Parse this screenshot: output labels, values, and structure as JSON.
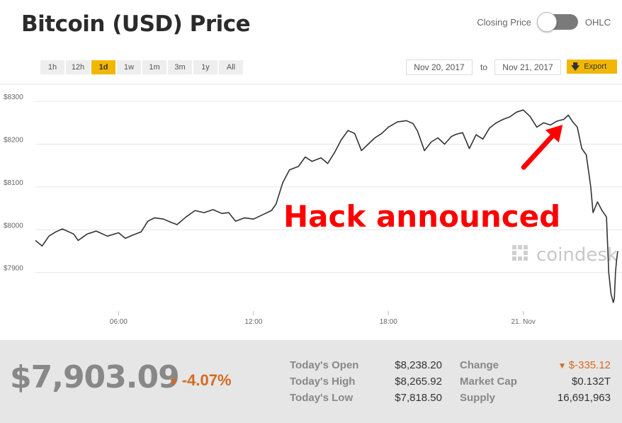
{
  "header": {
    "title": "Bitcoin (USD) Price",
    "toggle_left": "Closing Price",
    "toggle_right": "OHLC"
  },
  "ranges": [
    {
      "label": "1h",
      "active": false
    },
    {
      "label": "12h",
      "active": false
    },
    {
      "label": "1d",
      "active": true
    },
    {
      "label": "1w",
      "active": false
    },
    {
      "label": "1m",
      "active": false
    },
    {
      "label": "3m",
      "active": false
    },
    {
      "label": "1y",
      "active": false
    },
    {
      "label": "All",
      "active": false
    }
  ],
  "date_range": {
    "from": "Nov 20, 2017",
    "to_label": "to",
    "to": "Nov 21, 2017",
    "export_label": "Export",
    "export_icon": "download-arrow-icon"
  },
  "chart_data": {
    "type": "line",
    "title": "",
    "xlabel": "",
    "ylabel": "",
    "x_ticks": [
      {
        "label": "06:00",
        "hour": 6
      },
      {
        "label": "12:00",
        "hour": 12
      },
      {
        "label": "18:00",
        "hour": 18
      },
      {
        "label": "21. Nov",
        "hour": 24
      }
    ],
    "y_ticks": [
      {
        "label": "$8300",
        "value": 8300
      },
      {
        "label": "$8200",
        "value": 8200
      },
      {
        "label": "$8100",
        "value": 8100
      },
      {
        "label": "$8000",
        "value": 8000
      },
      {
        "label": "$7900",
        "value": 7900
      }
    ],
    "xlim": [
      2.3,
      28.2
    ],
    "ylim": [
      7810,
      8340
    ],
    "grid": true,
    "line_color": "#333333",
    "series": [
      {
        "points": [
          [
            2.3,
            7975
          ],
          [
            2.6,
            7962
          ],
          [
            2.9,
            7985
          ],
          [
            3.2,
            7995
          ],
          [
            3.5,
            8002
          ],
          [
            4.0,
            7990
          ],
          [
            4.2,
            7975
          ],
          [
            4.6,
            7990
          ],
          [
            5.0,
            7997
          ],
          [
            5.5,
            7985
          ],
          [
            6.0,
            7993
          ],
          [
            6.3,
            7980
          ],
          [
            6.6,
            7987
          ],
          [
            7.0,
            7995
          ],
          [
            7.3,
            8020
          ],
          [
            7.6,
            8028
          ],
          [
            8.0,
            8025
          ],
          [
            8.3,
            8018
          ],
          [
            8.6,
            8012
          ],
          [
            9.0,
            8030
          ],
          [
            9.4,
            8045
          ],
          [
            9.8,
            8040
          ],
          [
            10.2,
            8047
          ],
          [
            10.6,
            8038
          ],
          [
            10.9,
            8040
          ],
          [
            11.2,
            8020
          ],
          [
            11.6,
            8028
          ],
          [
            12.0,
            8025
          ],
          [
            12.4,
            8035
          ],
          [
            12.8,
            8045
          ],
          [
            13.0,
            8060
          ],
          [
            13.3,
            8110
          ],
          [
            13.6,
            8140
          ],
          [
            14.0,
            8148
          ],
          [
            14.3,
            8170
          ],
          [
            14.6,
            8160
          ],
          [
            15.0,
            8168
          ],
          [
            15.3,
            8155
          ],
          [
            15.6,
            8180
          ],
          [
            15.9,
            8210
          ],
          [
            16.2,
            8232
          ],
          [
            16.5,
            8225
          ],
          [
            16.8,
            8185
          ],
          [
            17.1,
            8200
          ],
          [
            17.4,
            8215
          ],
          [
            17.7,
            8225
          ],
          [
            18.0,
            8240
          ],
          [
            18.4,
            8252
          ],
          [
            18.8,
            8255
          ],
          [
            19.1,
            8248
          ],
          [
            19.3,
            8230
          ],
          [
            19.6,
            8185
          ],
          [
            19.9,
            8205
          ],
          [
            20.2,
            8215
          ],
          [
            20.5,
            8200
          ],
          [
            20.8,
            8218
          ],
          [
            21.0,
            8223
          ],
          [
            21.3,
            8227
          ],
          [
            21.6,
            8190
          ],
          [
            21.9,
            8222
          ],
          [
            22.2,
            8212
          ],
          [
            22.5,
            8238
          ],
          [
            22.8,
            8250
          ],
          [
            23.1,
            8258
          ],
          [
            23.4,
            8264
          ],
          [
            23.7,
            8275
          ],
          [
            24.0,
            8280
          ],
          [
            24.3,
            8265
          ],
          [
            24.6,
            8240
          ],
          [
            24.9,
            8250
          ],
          [
            25.2,
            8245
          ],
          [
            25.5,
            8254
          ],
          [
            25.8,
            8258
          ],
          [
            26.0,
            8268
          ],
          [
            26.2,
            8252
          ],
          [
            26.4,
            8240
          ],
          [
            26.6,
            8190
          ],
          [
            26.8,
            8175
          ],
          [
            27.0,
            8100
          ],
          [
            27.1,
            8040
          ],
          [
            27.3,
            8065
          ],
          [
            27.5,
            8045
          ],
          [
            27.7,
            8030
          ],
          [
            27.8,
            7900
          ],
          [
            27.9,
            7850
          ],
          [
            28.0,
            7830
          ],
          [
            28.05,
            7840
          ],
          [
            28.1,
            7900
          ],
          [
            28.15,
            7930
          ],
          [
            28.2,
            7950
          ]
        ]
      }
    ],
    "annotation": {
      "text": "Hack announced",
      "color": "#ff0000",
      "arrow_to": [
        26.0,
        8262
      ]
    },
    "watermark": "coindesk"
  },
  "stats": {
    "price": "$7,903.09",
    "change_pct": "-4.07%",
    "down_color": "#d66a1e",
    "today_open_label": "Today's Open",
    "today_open": "$8,238.20",
    "today_high_label": "Today's High",
    "today_high": "$8,265.92",
    "today_low_label": "Today's Low",
    "today_low": "$7,818.50",
    "change_label": "Change",
    "change_value": "$-335.12",
    "market_cap_label": "Market Cap",
    "market_cap": "$0.132T",
    "supply_label": "Supply",
    "supply": "16,691,963"
  }
}
